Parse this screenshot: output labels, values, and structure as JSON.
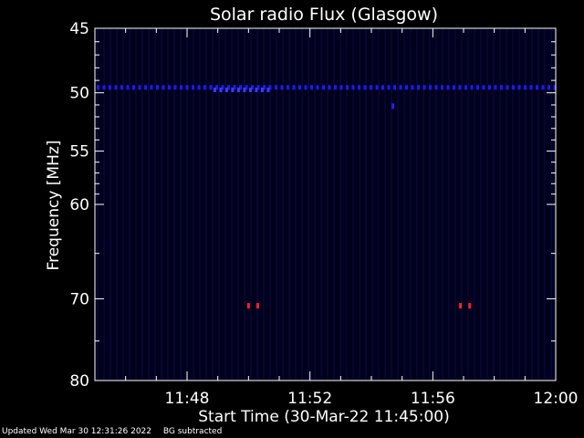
{
  "chart_data": {
    "type": "heatmap",
    "title": "Solar radio Flux (Glasgow)",
    "xlabel": "Start Time (30-Mar-22 11:45:00)",
    "ylabel": "Frequency [MHz]",
    "x_range_minutes": [
      0,
      15
    ],
    "x_ticks": [
      {
        "minute": 3,
        "label": "11:48"
      },
      {
        "minute": 7,
        "label": "11:52"
      },
      {
        "minute": 11,
        "label": "11:56"
      },
      {
        "minute": 15,
        "label": "12:00"
      }
    ],
    "y_scale": "log",
    "y_range": [
      45,
      80
    ],
    "y_reversed": true,
    "y_ticks": [
      45,
      50,
      55,
      60,
      70,
      80
    ],
    "background_color": "#00001e",
    "features": [
      {
        "kind": "narrowband-line",
        "frequency_mhz": 49.6,
        "x_start": 0,
        "x_end": 15,
        "color": "#1a1aff"
      },
      {
        "kind": "narrowband-line",
        "frequency_mhz": 49.8,
        "x_start": 3.8,
        "x_end": 5.8,
        "color": "#3a3aff"
      },
      {
        "kind": "spot",
        "frequency_mhz": 51.1,
        "x": 9.7,
        "color": "#2020ff"
      },
      {
        "kind": "spot",
        "frequency_mhz": 70.8,
        "x": 5.0,
        "color": "#ff2020"
      },
      {
        "kind": "spot",
        "frequency_mhz": 70.8,
        "x": 5.3,
        "color": "#ff2020"
      },
      {
        "kind": "spot",
        "frequency_mhz": 70.8,
        "x": 11.9,
        "color": "#ff2020"
      },
      {
        "kind": "spot",
        "frequency_mhz": 70.8,
        "x": 12.2,
        "color": "#ff2020"
      }
    ]
  },
  "footer": {
    "updated": "Updated Wed Mar 30 12:31:26 2022",
    "note": "BG subtracted"
  }
}
